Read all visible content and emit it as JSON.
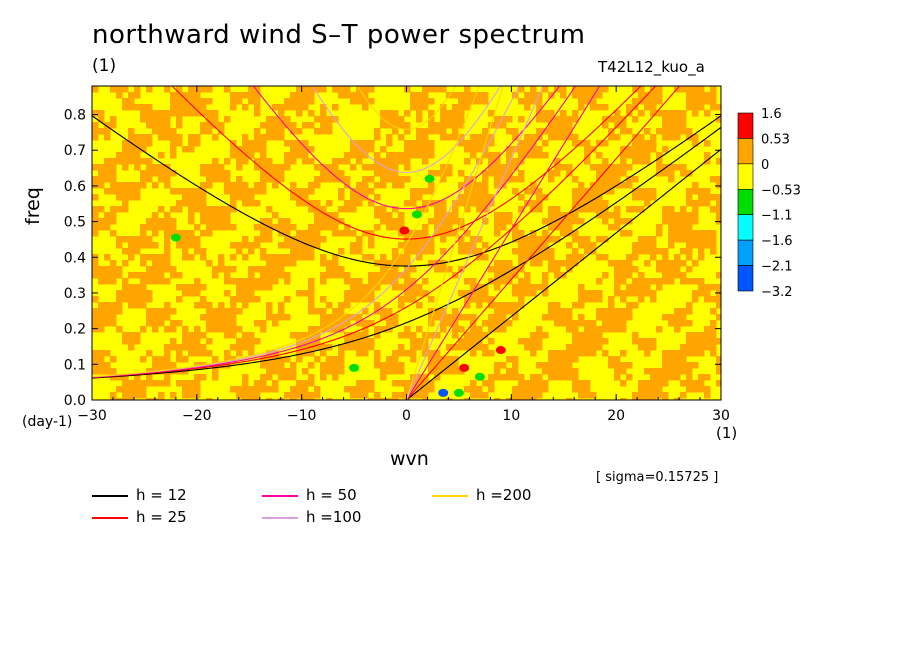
{
  "title": "northward wind S–T power spectrum",
  "units_top": "(1)",
  "experiment": "T42L12_kuo_a",
  "sigma_label": "[ sigma=0.15725 ]",
  "chart_data": {
    "type": "heatmap",
    "xlabel": "wvn",
    "xunit": "(1)",
    "ylabel": "freq",
    "yunit": "(day-1)",
    "xlim": [
      -30,
      30
    ],
    "ylim": [
      0,
      0.88
    ],
    "x_ticks": [
      -30,
      -20,
      -10,
      0,
      10,
      20,
      30
    ],
    "y_ticks": [
      0.0,
      0.1,
      0.2,
      0.3,
      0.4,
      0.5,
      0.6,
      0.7,
      0.8
    ],
    "x_tick_labels": [
      "−30",
      "−20",
      "−10",
      "0",
      "10",
      "20",
      "30"
    ],
    "y_tick_labels": [
      "0.0",
      "0.1",
      "0.2",
      "0.3",
      "0.4",
      "0.5",
      "0.6",
      "0.7",
      "0.8"
    ],
    "colorbar": {
      "levels": [
        "1.6",
        "0.53",
        "0",
        "−0.53",
        "−1.1",
        "−1.6",
        "−2.1",
        "−3.2"
      ],
      "colors": [
        "#ff0000",
        "#ffa500",
        "#ffff00",
        "#00dd00",
        "#00ffff",
        "#00a0ff",
        "#0055ff"
      ]
    },
    "background_colors": {
      "low": "#ffff00",
      "high": "#ffa500"
    },
    "dispersion_curves": [
      {
        "label": "h = 12",
        "color": "#000000"
      },
      {
        "label": "h = 25",
        "color": "#ff0000"
      },
      {
        "label": "h = 50",
        "color": "#ff00aa"
      },
      {
        "label": "h =100",
        "color": "#dda0dd"
      },
      {
        "label": "h =200",
        "color": "#ffd700"
      }
    ],
    "anomaly_patches": [
      {
        "x": 2.2,
        "y": 0.62,
        "color": "#00dd00"
      },
      {
        "x": 1.0,
        "y": 0.52,
        "color": "#00dd00"
      },
      {
        "x": -22.0,
        "y": 0.455,
        "color": "#00dd00"
      },
      {
        "x": -5.0,
        "y": 0.09,
        "color": "#00dd00"
      },
      {
        "x": 7.0,
        "y": 0.065,
        "color": "#00dd00"
      },
      {
        "x": 5.5,
        "y": 0.09,
        "color": "#ff0000"
      },
      {
        "x": 9.0,
        "y": 0.14,
        "color": "#ff0000"
      },
      {
        "x": 3.5,
        "y": 0.02,
        "color": "#0055ff"
      },
      {
        "x": 5.0,
        "y": 0.02,
        "color": "#00dd00"
      },
      {
        "x": -0.2,
        "y": 0.475,
        "color": "#ff0000"
      }
    ]
  }
}
